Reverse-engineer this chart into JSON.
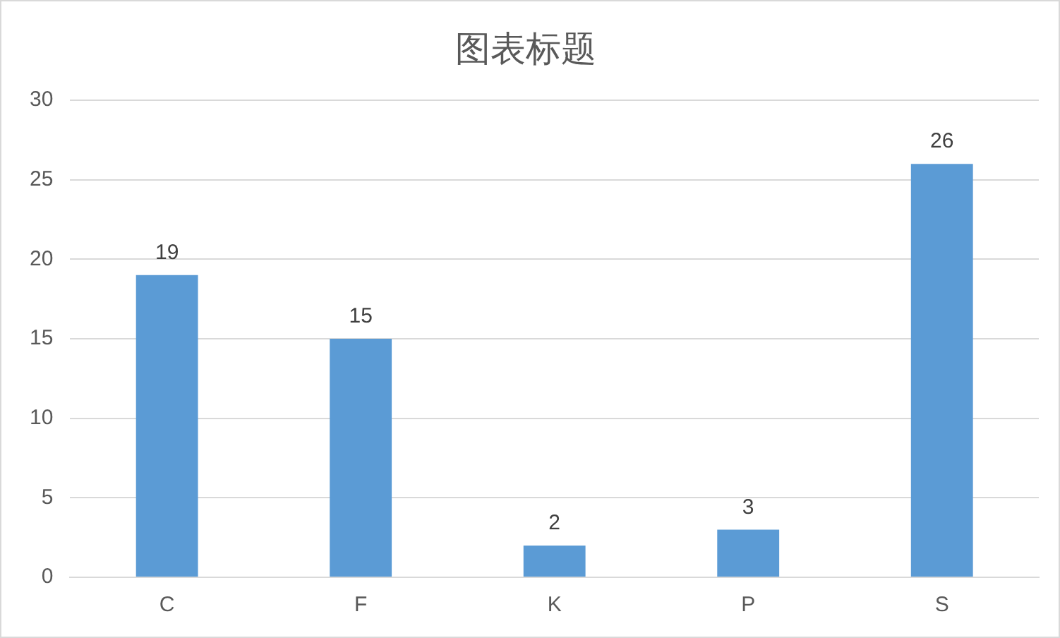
{
  "chart_data": {
    "type": "bar",
    "title": "图表标题",
    "categories": [
      "C",
      "F",
      "K",
      "P",
      "S"
    ],
    "values": [
      19,
      15,
      2,
      3,
      26
    ],
    "color": "#5b9bd5",
    "ylim": [
      0,
      30
    ],
    "yticks": [
      0,
      5,
      10,
      15,
      20,
      25,
      30
    ],
    "grid": "y",
    "data_labels": true
  }
}
